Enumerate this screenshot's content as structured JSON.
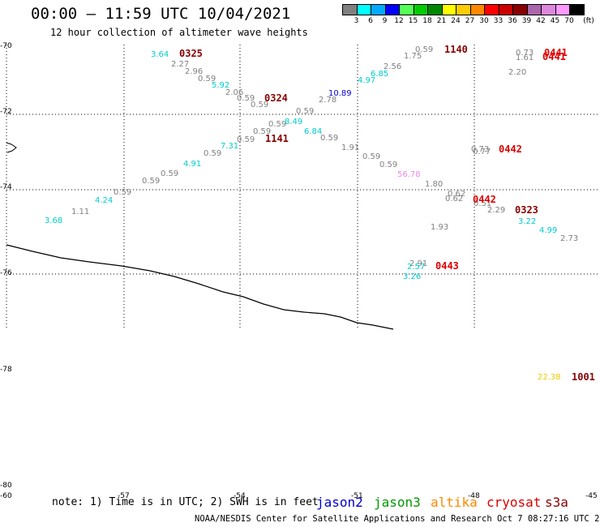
{
  "header": {
    "title": "00:00 – 11:59 UTC 10/04/2021",
    "subtitle": "12 hour collection of altimeter wave heights"
  },
  "color_scale": {
    "unit_label": "(ft)",
    "bins": [
      {
        "color": "#808080",
        "label": "3"
      },
      {
        "color": "#00ffff",
        "label": "6"
      },
      {
        "color": "#00aaff",
        "label": "9"
      },
      {
        "color": "#0000ff",
        "label": "12"
      },
      {
        "color": "#55ff55",
        "label": "15"
      },
      {
        "color": "#00cc00",
        "label": "18"
      },
      {
        "color": "#008800",
        "label": "21"
      },
      {
        "color": "#ffff00",
        "label": "24"
      },
      {
        "color": "#ffcc00",
        "label": "27"
      },
      {
        "color": "#ff8800",
        "label": "30"
      },
      {
        "color": "#ff0000",
        "label": "33"
      },
      {
        "color": "#cc0000",
        "label": "36"
      },
      {
        "color": "#880000",
        "label": "39"
      },
      {
        "color": "#aa66aa",
        "label": "42"
      },
      {
        "color": "#dd88dd",
        "label": "45"
      },
      {
        "color": "#ff99ff",
        "label": "70"
      },
      {
        "color": "#000000",
        "label": ""
      }
    ]
  },
  "lat_labels": [
    "-70",
    "-72",
    "-74",
    "-76",
    "-78",
    "-80"
  ],
  "lon_labels": [
    "-60",
    "-57",
    "-54",
    "-51",
    "-48",
    "-45"
  ],
  "note": "note: 1) Time is in UTC; 2) SWH is in feet",
  "satellites": [
    {
      "name": "jason2",
      "color": "#0000cc"
    },
    {
      "name": "jason3",
      "color": "#009900"
    },
    {
      "name": "altika",
      "color": "#ff8800"
    },
    {
      "name": "cryosat",
      "color": "#dd0000"
    },
    {
      "name": "s3a",
      "color": "#880000"
    }
  ],
  "credit": "NOAA/NESDIS Center for Satellite Applications and Research   Oct  7 08:27:16 UTC 2021",
  "observations": [
    {
      "text": "3.64",
      "color": "#00cccc",
      "pos": "186,62"
    },
    {
      "text": "2.27",
      "color": "#808080",
      "pos": "211,74"
    },
    {
      "text": "2.96",
      "color": "#808080",
      "pos": "228,83"
    },
    {
      "text": "0.59",
      "color": "#808080",
      "pos": "244,92"
    },
    {
      "text": "5.92",
      "color": "#00cccc",
      "pos": "261,100"
    },
    {
      "text": "2.06",
      "color": "#808080",
      "pos": "278,109"
    },
    {
      "text": "0.59",
      "color": "#808080",
      "pos": "292,116"
    },
    {
      "text": "0.59",
      "color": "#808080",
      "pos": "309,124"
    },
    {
      "text": "0.59",
      "color": "#808080",
      "pos": "365,132"
    },
    {
      "text": "0.59",
      "color": "#808080",
      "pos": "331,148"
    },
    {
      "text": "8.49",
      "color": "#00cccc",
      "pos": "351,145"
    },
    {
      "text": "6.84",
      "color": "#00cccc",
      "pos": "375,157"
    },
    {
      "text": "0.59",
      "color": "#808080",
      "pos": "312,157"
    },
    {
      "text": "0.59",
      "color": "#808080",
      "pos": "292,167"
    },
    {
      "text": "0.59",
      "color": "#808080",
      "pos": "395,165"
    },
    {
      "text": "7.31",
      "color": "#00cccc",
      "pos": "272,175"
    },
    {
      "text": "0.59",
      "color": "#808080",
      "pos": "251,184"
    },
    {
      "text": "4.91",
      "color": "#00cccc",
      "pos": "226,197"
    },
    {
      "text": "0.59",
      "color": "#808080",
      "pos": "198,209"
    },
    {
      "text": "0.59",
      "color": "#808080",
      "pos": "175,218"
    },
    {
      "text": "0.59",
      "color": "#808080",
      "pos": "140,232"
    },
    {
      "text": "4.24",
      "color": "#00cccc",
      "pos": "117,242"
    },
    {
      "text": "1.11",
      "color": "#808080",
      "pos": "88,256"
    },
    {
      "text": "3.68",
      "color": "#00cccc",
      "pos": "55,267"
    },
    {
      "text": "0.59",
      "color": "#808080",
      "pos": "512,56"
    },
    {
      "text": "1.75",
      "color": "#808080",
      "pos": "498,64"
    },
    {
      "text": "2.56",
      "color": "#808080",
      "pos": "473,77"
    },
    {
      "text": "6.85",
      "color": "#00cccc",
      "pos": "457,86"
    },
    {
      "text": "4.97",
      "color": "#00cccc",
      "pos": "441,94"
    },
    {
      "text": "10.89",
      "color": "#0000cc",
      "pos": "405,110"
    },
    {
      "text": "2.78",
      "color": "#808080",
      "pos": "393,118"
    },
    {
      "text": "1.91",
      "color": "#808080",
      "pos": "421,177"
    },
    {
      "text": "0.59",
      "color": "#808080",
      "pos": "447,188"
    },
    {
      "text": "0.59",
      "color": "#808080",
      "pos": "468,198"
    },
    {
      "text": "56.78",
      "color": "#ee88ee",
      "pos": "490,210"
    },
    {
      "text": "1.80",
      "color": "#808080",
      "pos": "524,222"
    },
    {
      "text": "0.62",
      "color": "#808080",
      "pos": "552,234"
    },
    {
      "text": "0.62",
      "color": "#808080",
      "pos": "549,240"
    },
    {
      "text": "0.51",
      "color": "#808080",
      "pos": "584,246"
    },
    {
      "text": "2.29",
      "color": "#808080",
      "pos": "601,254"
    },
    {
      "text": "3.22",
      "color": "#00cccc",
      "pos": "639,268"
    },
    {
      "text": "4.99",
      "color": "#00cccc",
      "pos": "665,279"
    },
    {
      "text": "2.73",
      "color": "#808080",
      "pos": "691,289"
    },
    {
      "text": "1.93",
      "color": "#808080",
      "pos": "531,275"
    },
    {
      "text": "2.91",
      "color": "#808080",
      "pos": "505,320"
    },
    {
      "text": "2.57",
      "color": "#00cccc",
      "pos": "502,324"
    },
    {
      "text": "3.26",
      "color": "#00cccc",
      "pos": "497,336"
    },
    {
      "text": "0.73",
      "color": "#808080",
      "pos": "581,179"
    },
    {
      "text": "0.77",
      "color": "#808080",
      "pos": "583,182"
    },
    {
      "text": "0.73",
      "color": "#808080",
      "pos": "636,60"
    },
    {
      "text": "1.61",
      "color": "#808080",
      "pos": "636,66"
    },
    {
      "text": "2.20",
      "color": "#808080",
      "pos": "627,84"
    },
    {
      "text": "22.38",
      "color": "#eecc00",
      "pos": "663,460"
    }
  ],
  "passes": [
    {
      "text": "0325",
      "color": "#880000",
      "pos": "221,60"
    },
    {
      "text": "0324",
      "color": "#880000",
      "pos": "326,115"
    },
    {
      "text": "1141",
      "color": "#880000",
      "pos": "327,165"
    },
    {
      "text": "1140",
      "color": "#880000",
      "pos": "548,55"
    },
    {
      "text": "0441",
      "color": "#dd0000",
      "pos": "671,59"
    },
    {
      "text": "0441",
      "color": "#dd0000",
      "pos": "669,64"
    },
    {
      "text": "0442",
      "color": "#dd0000",
      "pos": "615,178"
    },
    {
      "text": "0442",
      "color": "#dd0000",
      "pos": "583,240"
    },
    {
      "text": "0323",
      "color": "#880000",
      "pos": "635,253"
    },
    {
      "text": "0443",
      "color": "#dd0000",
      "pos": "537,322"
    },
    {
      "text": "1001",
      "color": "#880000",
      "pos": "705,459"
    }
  ]
}
